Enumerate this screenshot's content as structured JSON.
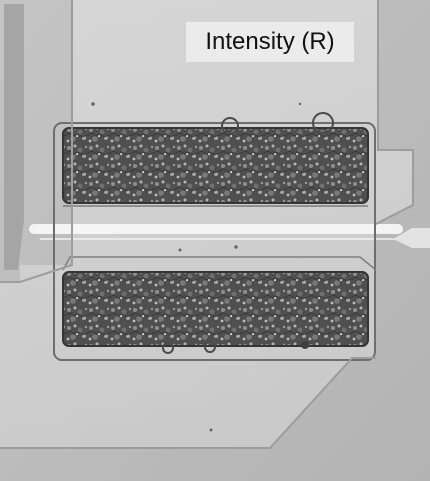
{
  "label": {
    "text": "Intensity (R)"
  },
  "colors": {
    "substrate": "#b8b8b8",
    "electrode": "#d8d8d8",
    "polymer": "#4b4b4b",
    "caption_bg": "#ececec",
    "caption_text": "#111111"
  },
  "icons": {
    "particle": "dark-particle-icon"
  }
}
